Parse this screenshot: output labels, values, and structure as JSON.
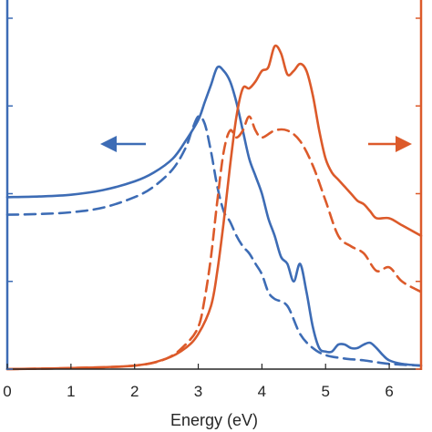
{
  "chart_data": {
    "type": "line",
    "title": "",
    "xlabel": "Energy (eV)",
    "ylabel_left": "",
    "ylabel_right": "",
    "xlim": [
      0,
      6.5
    ],
    "x_ticks": [
      "0",
      "1",
      "2",
      "3",
      "4",
      "5",
      "6"
    ],
    "ylim_left": [
      0,
      1.0
    ],
    "ylim_right": [
      0,
      1.0
    ],
    "grid": false,
    "legend": "none",
    "colors": {
      "blue": "#3d6cb5",
      "orange": "#dc5a2a",
      "axis": "#262626"
    },
    "series": [
      {
        "axis": "left",
        "style": "solid",
        "color": "#3d6cb5",
        "x": [
          0,
          0.5,
          1.0,
          1.5,
          2.0,
          2.3,
          2.6,
          2.8,
          3.0,
          3.1,
          3.2,
          3.3,
          3.4,
          3.5,
          3.6,
          3.7,
          3.8,
          3.9,
          4.0,
          4.1,
          4.2,
          4.3,
          4.4,
          4.5,
          4.6,
          4.7,
          4.8,
          4.9,
          5.0,
          5.1,
          5.2,
          5.3,
          5.4,
          5.5,
          5.6,
          5.7,
          5.8,
          5.9,
          6.0,
          6.2,
          6.5
        ],
        "y": [
          0.49,
          0.492,
          0.497,
          0.51,
          0.535,
          0.56,
          0.6,
          0.65,
          0.71,
          0.76,
          0.81,
          0.86,
          0.85,
          0.82,
          0.76,
          0.68,
          0.6,
          0.55,
          0.5,
          0.43,
          0.38,
          0.32,
          0.3,
          0.25,
          0.3,
          0.22,
          0.12,
          0.06,
          0.05,
          0.05,
          0.07,
          0.07,
          0.06,
          0.06,
          0.07,
          0.075,
          0.06,
          0.04,
          0.025,
          0.015,
          0.01
        ]
      },
      {
        "axis": "left",
        "style": "dashed",
        "color": "#3d6cb5",
        "x": [
          0,
          0.5,
          1.0,
          1.5,
          2.0,
          2.3,
          2.6,
          2.8,
          2.9,
          3.0,
          3.1,
          3.2,
          3.3,
          3.4,
          3.5,
          3.6,
          3.7,
          3.8,
          3.9,
          4.0,
          4.1,
          4.2,
          4.4,
          4.6,
          4.8,
          5.0,
          5.3,
          5.6,
          6.0,
          6.5
        ],
        "y": [
          0.44,
          0.442,
          0.447,
          0.46,
          0.49,
          0.52,
          0.57,
          0.63,
          0.68,
          0.72,
          0.7,
          0.62,
          0.52,
          0.45,
          0.42,
          0.38,
          0.35,
          0.33,
          0.3,
          0.27,
          0.22,
          0.2,
          0.18,
          0.1,
          0.06,
          0.04,
          0.03,
          0.025,
          0.015,
          0.01
        ]
      },
      {
        "axis": "right",
        "style": "solid",
        "color": "#dc5a2a",
        "x": [
          0,
          1.0,
          2.0,
          2.5,
          2.8,
          3.0,
          3.2,
          3.3,
          3.4,
          3.5,
          3.6,
          3.7,
          3.8,
          3.9,
          4.0,
          4.1,
          4.2,
          4.3,
          4.4,
          4.5,
          4.6,
          4.7,
          4.8,
          4.9,
          5.0,
          5.1,
          5.2,
          5.3,
          5.4,
          5.5,
          5.6,
          5.7,
          5.8,
          6.0,
          6.2,
          6.5
        ],
        "y": [
          0,
          0.003,
          0.01,
          0.03,
          0.06,
          0.1,
          0.18,
          0.28,
          0.42,
          0.58,
          0.72,
          0.8,
          0.8,
          0.82,
          0.85,
          0.86,
          0.92,
          0.9,
          0.84,
          0.85,
          0.87,
          0.85,
          0.78,
          0.68,
          0.6,
          0.56,
          0.54,
          0.52,
          0.5,
          0.48,
          0.47,
          0.45,
          0.43,
          0.43,
          0.41,
          0.38
        ]
      },
      {
        "axis": "right",
        "style": "dashed",
        "color": "#dc5a2a",
        "x": [
          0,
          1.0,
          2.0,
          2.5,
          2.8,
          3.0,
          3.1,
          3.2,
          3.3,
          3.4,
          3.5,
          3.6,
          3.7,
          3.8,
          3.9,
          4.0,
          4.2,
          4.4,
          4.6,
          4.8,
          5.0,
          5.2,
          5.4,
          5.6,
          5.8,
          6.0,
          6.2,
          6.5
        ],
        "y": [
          0,
          0.003,
          0.01,
          0.03,
          0.07,
          0.12,
          0.2,
          0.32,
          0.48,
          0.62,
          0.68,
          0.66,
          0.68,
          0.72,
          0.68,
          0.66,
          0.68,
          0.68,
          0.65,
          0.58,
          0.48,
          0.38,
          0.35,
          0.33,
          0.28,
          0.29,
          0.25,
          0.22
        ]
      }
    ],
    "annotations": [
      {
        "type": "arrow",
        "direction": "left",
        "color": "#3d6cb5"
      },
      {
        "type": "arrow",
        "direction": "right",
        "color": "#dc5a2a"
      }
    ]
  }
}
